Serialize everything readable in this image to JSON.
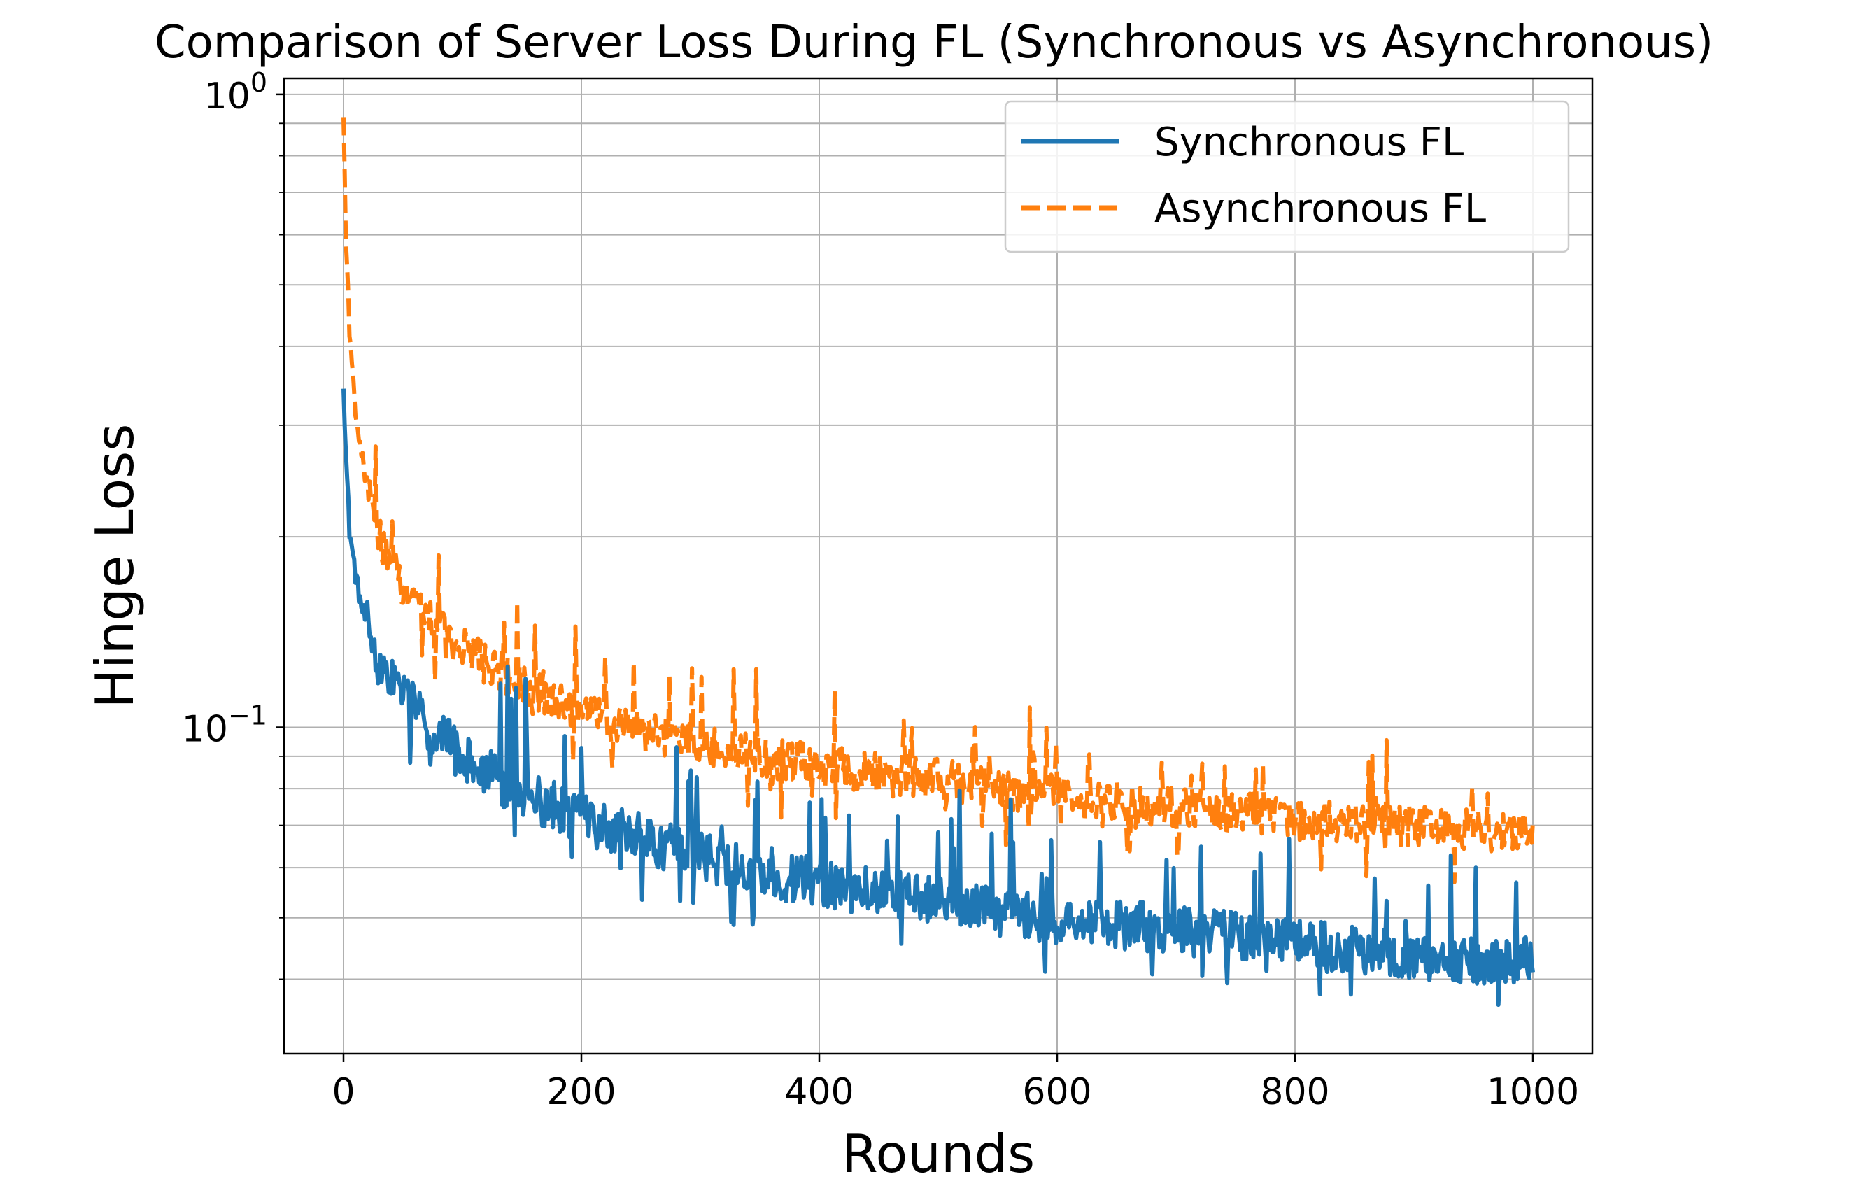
{
  "chart_data": {
    "type": "line",
    "title": "Comparison of Server Loss During FL (Synchronous vs Asynchronous)",
    "xlabel": "Rounds",
    "ylabel": "Hinge Loss",
    "xlim": [
      -50,
      1050
    ],
    "ylim": [
      0.0305,
      1.06
    ],
    "yscale": "log",
    "grid": true,
    "x_ticks": [
      0,
      200,
      400,
      600,
      800,
      1000
    ],
    "x_tick_labels": [
      "0",
      "200",
      "400",
      "600",
      "800",
      "1000"
    ],
    "y_major_ticks": [
      {
        "value": 1.0,
        "base": "10",
        "exp": "0"
      },
      {
        "value": 0.1,
        "base": "10",
        "exp": "−1"
      }
    ],
    "y_minor_ticks": [
      0.04,
      0.05,
      0.06,
      0.07,
      0.08,
      0.09,
      0.2,
      0.3,
      0.4,
      0.5,
      0.6,
      0.7,
      0.8,
      0.9
    ],
    "legend_position": "top-right",
    "x": [
      0,
      2,
      5,
      10,
      15,
      20,
      25,
      30,
      40,
      50,
      60,
      70,
      80,
      90,
      100,
      120,
      140,
      160,
      180,
      200,
      225,
      250,
      275,
      300,
      325,
      350,
      375,
      400,
      450,
      500,
      550,
      600,
      650,
      700,
      750,
      800,
      850,
      900,
      950,
      1000
    ],
    "series": [
      {
        "name": "Synchronous FL",
        "style": "solid",
        "color": "#1f77b4",
        "values": [
          0.355,
          0.27,
          0.205,
          0.175,
          0.155,
          0.145,
          0.135,
          0.127,
          0.12,
          0.113,
          0.107,
          0.102,
          0.098,
          0.094,
          0.09,
          0.085,
          0.081,
          0.077,
          0.075,
          0.072,
          0.069,
          0.067,
          0.065,
          0.063,
          0.061,
          0.06,
          0.058,
          0.057,
          0.055,
          0.053,
          0.051,
          0.05,
          0.049,
          0.048,
          0.047,
          0.046,
          0.045,
          0.044,
          0.043,
          0.043
        ]
      },
      {
        "name": "Asynchronous FL",
        "style": "dashed",
        "color": "#ff7f0e",
        "values": [
          0.92,
          0.6,
          0.42,
          0.32,
          0.27,
          0.24,
          0.215,
          0.2,
          0.18,
          0.168,
          0.158,
          0.15,
          0.143,
          0.138,
          0.134,
          0.126,
          0.12,
          0.114,
          0.11,
          0.106,
          0.102,
          0.099,
          0.097,
          0.095,
          0.092,
          0.09,
          0.089,
          0.087,
          0.085,
          0.083,
          0.08,
          0.079,
          0.077,
          0.075,
          0.074,
          0.072,
          0.071,
          0.07,
          0.069,
          0.068
        ]
      }
    ]
  }
}
